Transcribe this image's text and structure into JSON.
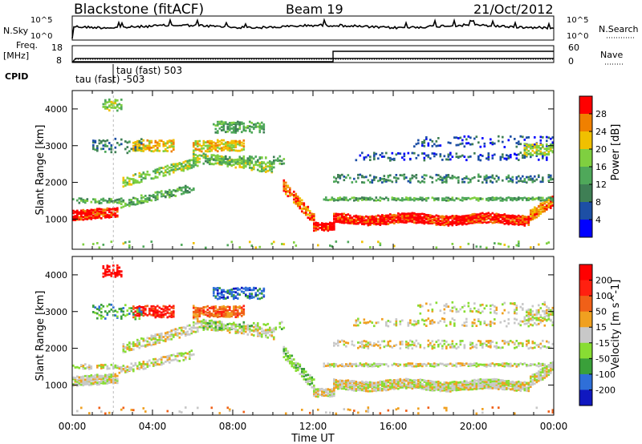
{
  "header": {
    "station": "Blackstone (fitACF)",
    "beam": "Beam 19",
    "date": "21/Oct/2012"
  },
  "panels": {
    "nsky": {
      "label": "N.Sky",
      "ticks": [
        "10^5",
        "10^0"
      ]
    },
    "nsearch": {
      "label": "N.Search",
      "ticks": [
        "10^5",
        "10^0"
      ]
    },
    "freq": {
      "label_line1": "Freq.",
      "label_line2": "[MHz]",
      "ticks": [
        "18",
        "8"
      ]
    },
    "nave": {
      "label": "Nave",
      "ticks": [
        "60",
        "0"
      ]
    },
    "cpid": {
      "label": "CPID",
      "annotations": [
        "tau (fast) 503",
        "tau (fast) -503"
      ]
    }
  },
  "chart_data": [
    {
      "type": "line",
      "title": "N.Sky / N.Search",
      "y_scale": "log",
      "ylim": [
        1,
        100000
      ],
      "x": [
        "00:00",
        "04:00",
        "08:00",
        "12:00",
        "16:00",
        "20:00",
        "00:00"
      ],
      "series": [
        {
          "name": "N.Sky",
          "description_level": "approx 10^3-10^4, noisy, spikes near 02:00, 07:00, 10:00"
        }
      ]
    },
    {
      "type": "line",
      "title": "Freq. / Nave",
      "series": [
        {
          "name": "Freq. [MHz]",
          "ylim": [
            8,
            18
          ],
          "x_hours": [
            0,
            0.1,
            24
          ],
          "values": [
            8,
            10.5,
            10.5
          ]
        },
        {
          "name": "Nave",
          "ylim": [
            0,
            60
          ],
          "x_hours": [
            0,
            13,
            13,
            24
          ],
          "values": [
            0,
            0,
            36,
            36
          ]
        }
      ]
    },
    {
      "type": "heatmap",
      "title": "Power",
      "xlabel": "",
      "ylabel": "Slant Range [km]",
      "y_ticks": [
        1000,
        2000,
        3000,
        4000
      ],
      "ylim": [
        180,
        4500
      ],
      "x_ticks": [
        "00:00",
        "04:00",
        "08:00",
        "12:00",
        "16:00",
        "20:00",
        "00:00"
      ],
      "colorbar": {
        "label": "Power [dB]",
        "ticks": [
          4,
          8,
          12,
          16,
          20,
          24,
          28
        ],
        "colors": [
          "#0000ff",
          "#1d4fa5",
          "#3f7f55",
          "#4fa85a",
          "#7fcf40",
          "#f0c000",
          "#f08000",
          "#ff0000"
        ]
      }
    },
    {
      "type": "heatmap",
      "title": "Velocity",
      "xlabel": "Time UT",
      "ylabel": "Slant Range [km]",
      "y_ticks": [
        1000,
        2000,
        3000,
        4000
      ],
      "ylim": [
        180,
        4500
      ],
      "x_ticks": [
        "00:00",
        "04:00",
        "08:00",
        "12:00",
        "16:00",
        "20:00",
        "00:00"
      ],
      "colorbar": {
        "label": "Velocity [m s^-1]",
        "ticks": [
          200,
          100,
          50,
          15,
          -15,
          -50,
          -100,
          -200
        ],
        "colors": [
          "#1018c0",
          "#2f6fd8",
          "#3aa03a",
          "#88dd33",
          "#c8c8c8",
          "#f0a020",
          "#f06018",
          "#ff2010",
          "#ff0000"
        ]
      }
    }
  ]
}
